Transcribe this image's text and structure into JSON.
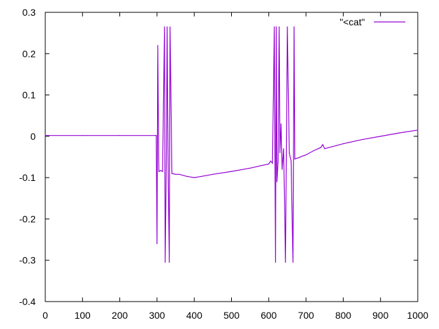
{
  "chart_data": {
    "type": "line",
    "title": "",
    "xlabel": "",
    "ylabel": "",
    "xlim": [
      0,
      1000
    ],
    "ylim": [
      -0.4,
      0.3
    ],
    "x_ticks": [
      0,
      100,
      200,
      300,
      400,
      500,
      600,
      700,
      800,
      900,
      1000
    ],
    "y_ticks": [
      -0.4,
      -0.3,
      -0.2,
      -0.1,
      0,
      0.1,
      0.2,
      0.3
    ],
    "y_tick_labels": [
      "-0.4",
      "-0.3",
      "-0.2",
      "-0.1",
      "0",
      "0.1",
      "0.2",
      "0.3"
    ],
    "grid": false,
    "legend_position": "top-right",
    "series": [
      {
        "name": "\"<cat\"",
        "color": "#9400d3",
        "x": [
          0,
          100,
          200,
          295,
          298,
          300,
          302,
          305,
          310,
          315,
          320,
          322,
          325,
          327,
          330,
          333,
          335,
          340,
          350,
          360,
          380,
          400,
          420,
          450,
          500,
          550,
          600,
          605,
          610,
          615,
          618,
          620,
          622,
          625,
          628,
          630,
          633,
          636,
          640,
          645,
          650,
          655,
          660,
          665,
          668,
          670,
          680,
          690,
          700,
          720,
          740,
          745,
          750,
          800,
          850,
          900,
          950,
          1000
        ],
        "y": [
          0.002,
          0.002,
          0.002,
          0.002,
          0.002,
          -0.26,
          0.22,
          -0.085,
          -0.083,
          -0.085,
          0.265,
          -0.305,
          -0.06,
          0.265,
          -0.1,
          -0.305,
          0.265,
          -0.09,
          -0.092,
          -0.092,
          -0.097,
          -0.1,
          -0.097,
          -0.092,
          -0.085,
          -0.077,
          -0.067,
          -0.06,
          -0.065,
          0.265,
          -0.305,
          0.265,
          -0.11,
          -0.06,
          0.265,
          -0.04,
          0.03,
          -0.08,
          -0.03,
          -0.305,
          0.265,
          -0.04,
          -0.06,
          -0.305,
          0.265,
          -0.055,
          -0.052,
          -0.048,
          -0.045,
          -0.035,
          -0.027,
          -0.02,
          -0.03,
          -0.018,
          -0.008,
          0.0,
          0.008,
          0.015
        ]
      }
    ]
  }
}
